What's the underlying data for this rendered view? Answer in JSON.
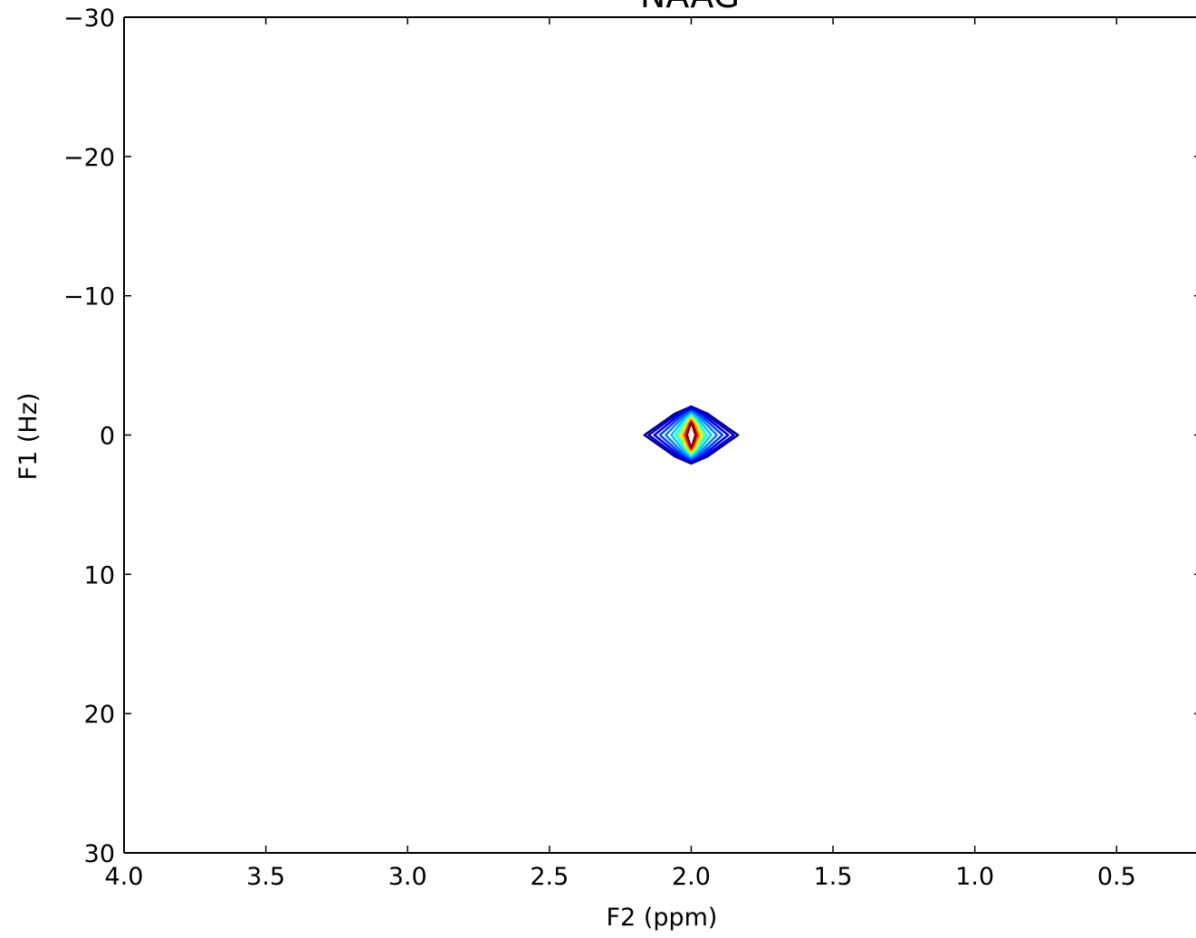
{
  "chart_data": {
    "type": "contour",
    "title": "NAAG",
    "xlabel": "F2 (ppm)",
    "ylabel": "F1 (Hz)",
    "xlim": [
      4.0,
      0.22
    ],
    "ylim": [
      -30,
      30
    ],
    "x_reversed": true,
    "y_reversed": true,
    "x_ticks": [
      4.0,
      3.5,
      3.0,
      2.5,
      2.0,
      1.5,
      1.0,
      0.5
    ],
    "x_tick_labels": [
      "4.0",
      "3.5",
      "3.0",
      "2.5",
      "2.0",
      "1.5",
      "1.0",
      "0.5"
    ],
    "y_ticks": [
      -30,
      -20,
      -10,
      0,
      10,
      20,
      30
    ],
    "y_tick_labels": [
      "−30",
      "−20",
      "−10",
      "0",
      "10",
      "20",
      "30"
    ],
    "grid": false,
    "colormap": "jet",
    "peak": {
      "x": 2.0,
      "y": 0
    },
    "contours": [
      {
        "level": 1,
        "color": "#00008f",
        "half_width_x": 0.165,
        "half_height_y": 2.05
      },
      {
        "level": 2,
        "color": "#0000c8",
        "half_width_x": 0.15,
        "half_height_y": 1.95
      },
      {
        "level": 3,
        "color": "#0000ff",
        "half_width_x": 0.13,
        "half_height_y": 1.85
      },
      {
        "level": 4,
        "color": "#0040ff",
        "half_width_x": 0.11,
        "half_height_y": 1.75
      },
      {
        "level": 5,
        "color": "#0080ff",
        "half_width_x": 0.09,
        "half_height_y": 1.65
      },
      {
        "level": 6,
        "color": "#00c0ff",
        "half_width_x": 0.07,
        "half_height_y": 1.55
      },
      {
        "level": 7,
        "color": "#20ffe0",
        "half_width_x": 0.055,
        "half_height_y": 1.45
      },
      {
        "level": 8,
        "color": "#80ff80",
        "half_width_x": 0.045,
        "half_height_y": 1.35
      },
      {
        "level": 9,
        "color": "#e0ff20",
        "half_width_x": 0.037,
        "half_height_y": 1.25
      },
      {
        "level": 10,
        "color": "#ffc000",
        "half_width_x": 0.03,
        "half_height_y": 1.15
      },
      {
        "level": 11,
        "color": "#ff6000",
        "half_width_x": 0.024,
        "half_height_y": 1.05
      },
      {
        "level": 12,
        "color": "#e00000",
        "half_width_x": 0.019,
        "half_height_y": 0.95
      },
      {
        "level": 13,
        "color": "#800000",
        "half_width_x": 0.015,
        "half_height_y": 0.85
      }
    ]
  }
}
